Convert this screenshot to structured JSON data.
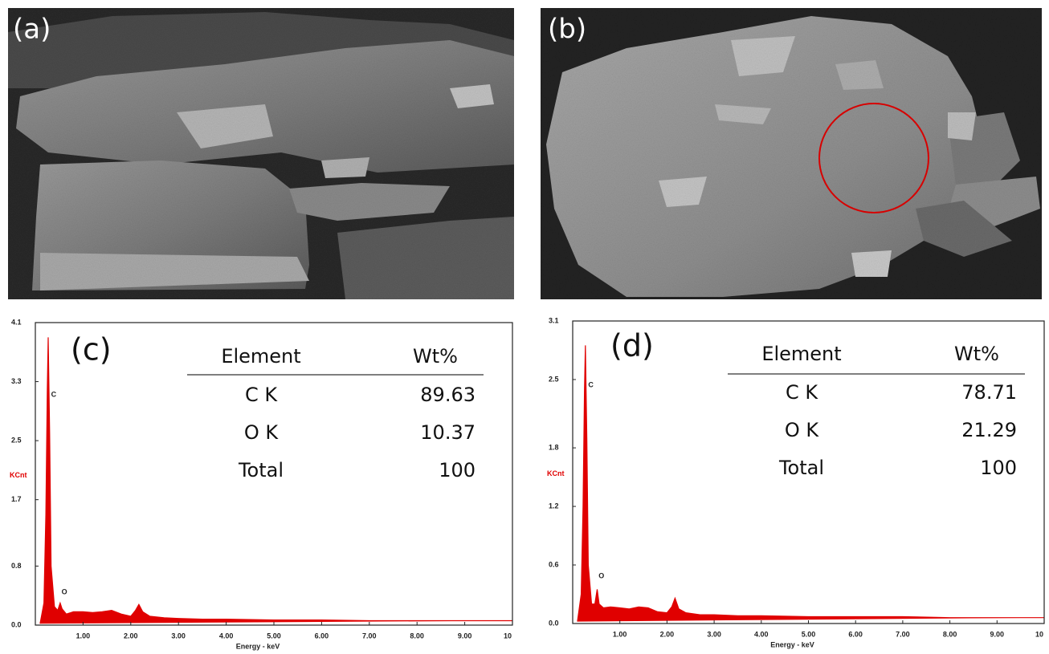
{
  "images": [
    {
      "label": "(a)"
    },
    {
      "label": "(b)"
    }
  ],
  "chart_data": [
    {
      "type": "line",
      "title": "(c)",
      "ylabel": "KCnt",
      "xlabel": "Energy - keV",
      "color": "#e00000",
      "x": [
        0.1,
        0.18,
        0.22,
        0.25,
        0.27,
        0.3,
        0.33,
        0.4,
        0.47,
        0.52,
        0.56,
        0.65,
        0.8,
        1.0,
        1.2,
        1.4,
        1.6,
        1.8,
        2.0,
        2.1,
        2.17,
        2.25,
        2.4,
        2.7,
        3.0,
        3.5,
        4.0,
        5.0,
        6.0,
        7.0,
        8.0,
        9.0,
        10.0
      ],
      "values": [
        0.02,
        0.3,
        1.5,
        3.2,
        3.9,
        2.6,
        0.8,
        0.25,
        0.2,
        0.3,
        0.22,
        0.15,
        0.18,
        0.18,
        0.17,
        0.18,
        0.2,
        0.15,
        0.12,
        0.2,
        0.28,
        0.18,
        0.12,
        0.1,
        0.09,
        0.08,
        0.08,
        0.07,
        0.07,
        0.06,
        0.06,
        0.06,
        0.06
      ],
      "xlim": [
        0,
        10
      ],
      "xticks": [
        {
          "value": 1,
          "label": "1.00"
        },
        {
          "value": 2,
          "label": "2.00"
        },
        {
          "value": 3,
          "label": "3.00"
        },
        {
          "value": 4,
          "label": "4.00"
        },
        {
          "value": 5,
          "label": "5.00"
        },
        {
          "value": 6,
          "label": "6.00"
        },
        {
          "value": 7,
          "label": "7.00"
        },
        {
          "value": 8,
          "label": "8.00"
        },
        {
          "value": 9,
          "label": "9.00"
        },
        10
      ],
      "ylim": [
        0,
        4.1
      ],
      "yticks": [
        {
          "value": 0,
          "label": "0.0"
        },
        0.8,
        1.7,
        2.5,
        3.3,
        4.1
      ],
      "annotations": [
        {
          "text": "C"
        },
        {
          "text": "O"
        }
      ],
      "table": {
        "header": [
          "Element",
          "Wt%"
        ],
        "rows": [
          [
            "C K",
            89.63
          ],
          [
            "O K",
            10.37
          ],
          [
            "Total",
            100
          ]
        ]
      }
    },
    {
      "type": "line",
      "title": "(d)",
      "ylabel": "KCnt",
      "xlabel": "Energy - keV",
      "color": "#e00000",
      "x": [
        0.1,
        0.18,
        0.22,
        0.25,
        0.27,
        0.3,
        0.33,
        0.4,
        0.47,
        0.52,
        0.56,
        0.65,
        0.8,
        1.0,
        1.2,
        1.4,
        1.6,
        1.8,
        2.0,
        2.1,
        2.17,
        2.25,
        2.4,
        2.7,
        3.0,
        3.5,
        4.0,
        5.0,
        6.0,
        7.0,
        8.0,
        9.0,
        10.0
      ],
      "values": [
        0.02,
        0.3,
        1.2,
        2.4,
        2.85,
        1.9,
        0.6,
        0.2,
        0.2,
        0.35,
        0.2,
        0.16,
        0.17,
        0.16,
        0.15,
        0.17,
        0.16,
        0.12,
        0.11,
        0.17,
        0.26,
        0.15,
        0.11,
        0.09,
        0.09,
        0.08,
        0.08,
        0.07,
        0.07,
        0.07,
        0.06,
        0.06,
        0.06
      ],
      "xlim": [
        0,
        10
      ],
      "xticks": [
        {
          "value": 1,
          "label": "1.00"
        },
        {
          "value": 2,
          "label": "2.00"
        },
        {
          "value": 3,
          "label": "3.00"
        },
        {
          "value": 4,
          "label": "4.00"
        },
        {
          "value": 5,
          "label": "5.00"
        },
        {
          "value": 6,
          "label": "6.00"
        },
        {
          "value": 7,
          "label": "7.00"
        },
        {
          "value": 8,
          "label": "8.00"
        },
        {
          "value": 9,
          "label": "9.00"
        },
        10
      ],
      "ylim": [
        0,
        3.1
      ],
      "yticks": [
        {
          "value": 0,
          "label": "0.0"
        },
        0.6,
        1.2,
        1.8,
        2.5,
        3.1
      ],
      "annotations": [
        {
          "text": "C"
        },
        {
          "text": "O"
        }
      ],
      "table": {
        "header": [
          "Element",
          "Wt%"
        ],
        "rows": [
          [
            "C K",
            78.71
          ],
          [
            "O K",
            21.29
          ],
          [
            "Total",
            100
          ]
        ]
      }
    }
  ]
}
